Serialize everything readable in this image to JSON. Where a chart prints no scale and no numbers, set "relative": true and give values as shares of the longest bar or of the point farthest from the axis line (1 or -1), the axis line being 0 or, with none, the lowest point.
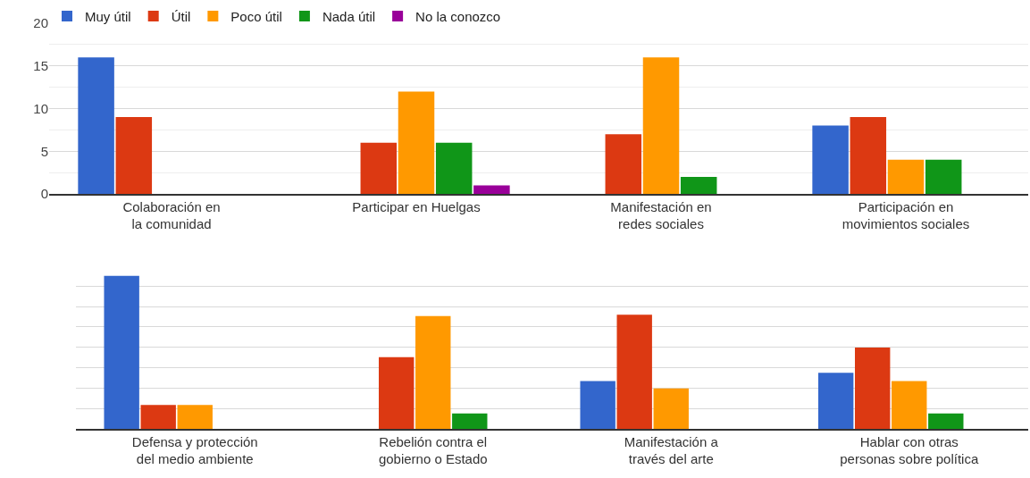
{
  "chart_data": [
    {
      "type": "bar",
      "categories": [
        "Colaboración en la comunidad",
        "Participar en Huelgas",
        "Manifestación en redes sociales",
        "Participación en movimientos sociales"
      ],
      "series": [
        {
          "name": "Muy útil",
          "color": "#3366cc",
          "values": [
            16,
            0,
            0,
            8
          ]
        },
        {
          "name": "Útil",
          "color": "#dc3912",
          "values": [
            9,
            6,
            7,
            9
          ]
        },
        {
          "name": "Poco útil",
          "color": "#ff9900",
          "values": [
            0,
            12,
            16,
            4
          ]
        },
        {
          "name": "Nada útil",
          "color": "#109618",
          "values": [
            0,
            6,
            2,
            4
          ]
        },
        {
          "name": "No la conozco",
          "color": "#990099",
          "values": [
            0,
            1,
            0,
            0
          ]
        }
      ],
      "ylim": [
        0,
        20
      ],
      "yticks": [
        0,
        5,
        10,
        15,
        20
      ],
      "grid": true,
      "legend": "top left"
    },
    {
      "type": "bar",
      "relative": true,
      "categories": [
        "Defensa y protección del medio ambiente",
        "Rebelión contra el gobierno o Estado",
        "Manifestación a través del arte",
        "Hablar con otras personas sobre política"
      ],
      "series": [
        {
          "color": "#3366cc",
          "values": [
            1,
            0,
            0.313,
            0.366
          ]
        },
        {
          "color": "#dc3912",
          "values": [
            0.156,
            0.469,
            0.747,
            0.531
          ]
        },
        {
          "color": "#ff9900",
          "values": [
            0.156,
            0.737,
            0.265,
            0.313
          ]
        },
        {
          "color": "#109618",
          "values": [
            0,
            0.101,
            0,
            0.101
          ]
        },
        {
          "color": "#990099",
          "values": [
            0,
            0,
            0,
            0
          ]
        }
      ],
      "grid": true,
      "legend": false
    }
  ]
}
